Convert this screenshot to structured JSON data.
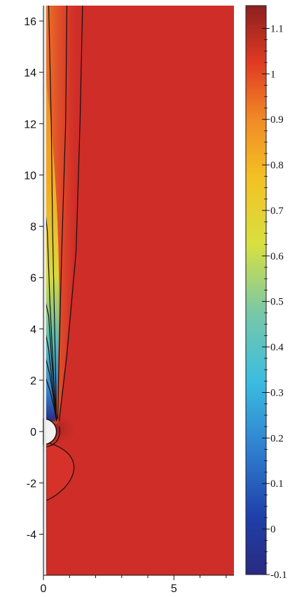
{
  "chart_data": {
    "type": "heatmap",
    "title": "",
    "xlabel": "",
    "ylabel": "",
    "x_ticks": [
      0,
      5
    ],
    "x_ticks_minor": [
      1,
      2,
      3,
      4,
      6,
      7
    ],
    "xlim": [
      0,
      7.3
    ],
    "y_ticks": [
      -4,
      -2,
      0,
      2,
      4,
      6,
      8,
      10,
      12,
      14,
      16
    ],
    "ylim": [
      -5.6,
      16.6
    ],
    "colorbar": {
      "ticks": [
        -0.1,
        0,
        0.1,
        0.2,
        0.3,
        0.4,
        0.5,
        0.6,
        0.7,
        0.8,
        0.9,
        1,
        1.1
      ],
      "tick_labels": [
        "-0.1",
        "0",
        "0.1",
        "0.2",
        "0.3",
        "0.4",
        "0.5",
        "0.6",
        "0.7",
        "0.8",
        "0.9",
        "1",
        "1.1"
      ],
      "range": [
        -0.1,
        1.15
      ],
      "colormap": "jet"
    },
    "obstacle": {
      "shape": "half-disk",
      "center": [
        0,
        0
      ],
      "radius": 0.5
    },
    "background_value": 1.0,
    "grid": false,
    "legend": "colorbar-right"
  }
}
